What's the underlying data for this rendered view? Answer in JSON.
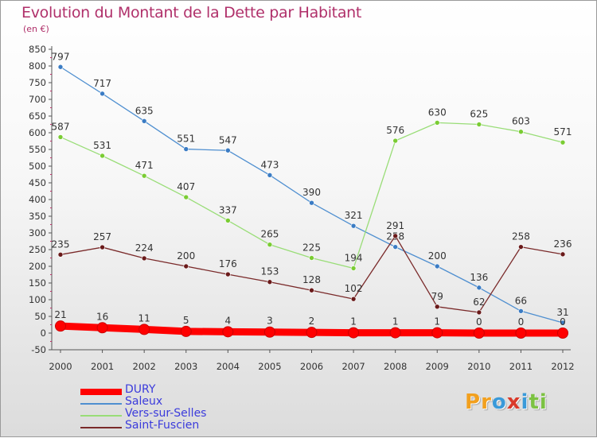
{
  "header": {
    "title": "Evolution du Montant de la Dette par Habitant",
    "unit": "(en €)"
  },
  "colors": {
    "title": "#b0306a",
    "axis": "#555555",
    "legend_text": "#3b3bdc",
    "grid_ticks": "#c0306a"
  },
  "chart_data": {
    "type": "line",
    "title": "Evolution du Montant de la Dette par Habitant",
    "subtitle": "(en €)",
    "xlabel": "",
    "ylabel": "",
    "x": [
      "2000",
      "2001",
      "2002",
      "2003",
      "2004",
      "2005",
      "2006",
      "2007",
      "2008",
      "2009",
      "2010",
      "2011",
      "2012"
    ],
    "ylim": [
      -50,
      850
    ],
    "yticks": [
      -50,
      0,
      50,
      100,
      150,
      200,
      250,
      300,
      350,
      400,
      450,
      500,
      550,
      600,
      650,
      700,
      750,
      800,
      850
    ],
    "grid": false,
    "legend_position": "bottom-left",
    "series": [
      {
        "name": "DURY",
        "color": "#ff0000",
        "bold": true,
        "values": [
          21,
          16,
          11,
          5,
          4,
          3,
          2,
          1,
          1,
          1,
          0,
          0,
          0
        ]
      },
      {
        "name": "Saleux",
        "color": "#4f8fd0",
        "point_color": "#3b7cc4",
        "values": [
          797,
          717,
          635,
          551,
          547,
          473,
          390,
          321,
          258,
          200,
          136,
          66,
          31
        ]
      },
      {
        "name": "Vers-sur-Selles",
        "color": "#99dd77",
        "point_color": "#7acc33",
        "values": [
          587,
          531,
          471,
          407,
          337,
          265,
          225,
          194,
          576,
          630,
          625,
          603,
          571
        ]
      },
      {
        "name": "Saint-Fuscien",
        "color": "#7a2a2a",
        "point_color": "#6a1a1a",
        "values": [
          235,
          257,
          224,
          200,
          176,
          153,
          128,
          102,
          291,
          79,
          62,
          258,
          236
        ]
      }
    ]
  },
  "legend": {
    "items": [
      {
        "label": "DURY",
        "color": "#ff0000"
      },
      {
        "label": "Saleux",
        "color": "#4f8fd0"
      },
      {
        "label": "Vers-sur-Selles",
        "color": "#99dd77"
      },
      {
        "label": "Saint-Fuscien",
        "color": "#7a2a2a"
      }
    ]
  },
  "logo": {
    "text": "Proxiti",
    "letters": [
      {
        "ch": "P",
        "color": "#f2a01e"
      },
      {
        "ch": "r",
        "color": "#f2a01e"
      },
      {
        "ch": "o",
        "color": "#3a9ad9"
      },
      {
        "ch": "x",
        "color": "#d93a2a"
      },
      {
        "ch": "i",
        "color": "#3a9ad9"
      },
      {
        "ch": "t",
        "color": "#7cc242"
      },
      {
        "ch": "i",
        "color": "#7cc242"
      }
    ]
  }
}
